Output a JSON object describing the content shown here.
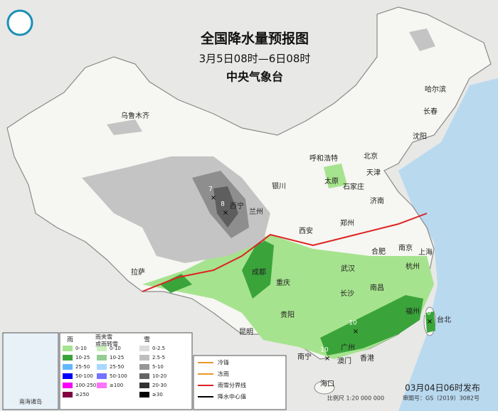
{
  "header": {
    "title": "全国降水量预报图",
    "time_range": "3月5日08时—6日08时",
    "issuer": "中央气象台"
  },
  "cities": [
    "乌鲁木齐",
    "哈尔滨",
    "长春",
    "沈阳",
    "呼和浩特",
    "北京",
    "天津",
    "石家庄",
    "太原",
    "银川",
    "西宁",
    "兰州",
    "济南",
    "郑州",
    "西安",
    "合肥",
    "南京",
    "上海",
    "武汉",
    "成都",
    "重庆",
    "杭州",
    "拉萨",
    "长沙",
    "南昌",
    "福州",
    "台北",
    "贵阳",
    "昆明",
    "南宁",
    "广州",
    "香港",
    "澳门",
    "海口"
  ],
  "rain_centers": [
    "7",
    "8",
    "10",
    "10",
    "10"
  ],
  "legend": {
    "rain": {
      "title": "雨",
      "items": [
        "0-10",
        "10-25",
        "25-50",
        "50-100",
        "100-250",
        "≥250"
      ]
    },
    "mix": {
      "title_lines": [
        "雨夹雪",
        "或雨转雪"
      ],
      "items": [
        "0-10",
        "10-25",
        "25-50",
        "50-100",
        "≥100"
      ]
    },
    "snow": {
      "title": "雪",
      "items": [
        "0-2.5",
        "2.5-5",
        "5-10",
        "10-20",
        "20-30",
        "≥30"
      ]
    },
    "symbols": [
      "冷锋",
      "冻雨",
      "雨雪分界线",
      "降水中心值"
    ]
  },
  "inset": {
    "title": "南海诸岛"
  },
  "footer": {
    "scale": "比例尺 1:20 000 000",
    "approval": "审图号：GS（2019）3082号",
    "issued": "03月04日06时发布"
  }
}
